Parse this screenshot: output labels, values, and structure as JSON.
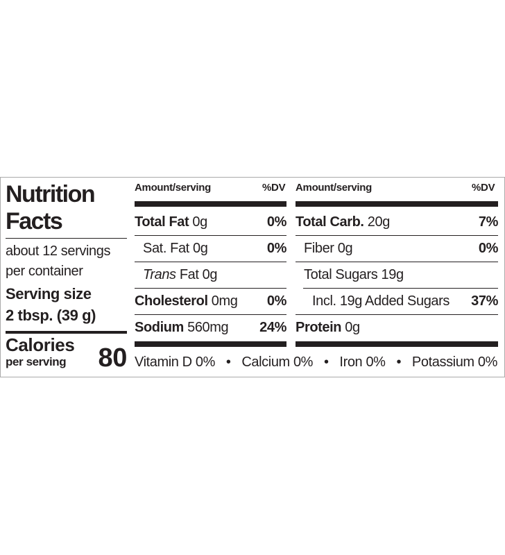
{
  "title": "Nutrition Facts",
  "servings": [
    "about 12 servings",
    "per container"
  ],
  "serving_size": {
    "label": "Serving size",
    "value": "2 tbsp. (39 g)"
  },
  "calories": {
    "label": "Calories",
    "sublabel": "per serving",
    "value": "80"
  },
  "columns": [
    {
      "header": {
        "amount": "Amount/serving",
        "dv": "%DV"
      },
      "rows": [
        {
          "name": "Total Fat",
          "amount": "0g",
          "dv": "0%"
        },
        {
          "name": "Sat. Fat",
          "amount": "0g",
          "dv": "0%"
        },
        {
          "name": "Trans",
          "amount": "Fat 0g"
        },
        {
          "name": "Cholesterol",
          "amount": "0mg",
          "dv": "0%"
        },
        {
          "name": "Sodium",
          "amount": "560mg",
          "dv": "24%"
        }
      ]
    },
    {
      "header": {
        "amount": "Amount/serving",
        "dv": "%DV"
      },
      "rows": [
        {
          "name": "Total Carb.",
          "amount": "20g",
          "dv": "7%"
        },
        {
          "name": "Fiber",
          "amount": "0g",
          "dv": "0%"
        },
        {
          "name": "Total Sugars",
          "amount": "19g"
        },
        {
          "name": "Incl. 19g Added Sugars",
          "dv": "37%"
        },
        {
          "name": "Protein",
          "amount": "0g"
        }
      ]
    }
  ],
  "vitamins": [
    "Vitamin D 0%",
    "Calcium 0%",
    "Iron 0%",
    "Potassium 0%"
  ]
}
